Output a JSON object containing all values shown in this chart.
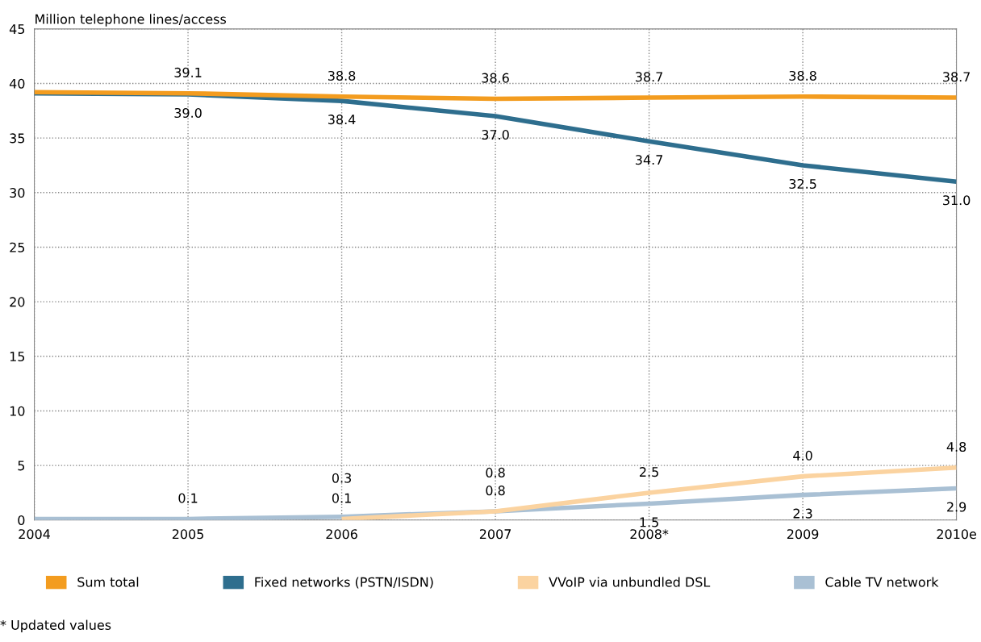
{
  "chart_data": {
    "type": "line",
    "ylabel": "Million telephone lines/access",
    "categories": [
      "2004",
      "2005",
      "2006",
      "2007",
      "2008*",
      "2009",
      "2010e"
    ],
    "series": [
      {
        "name": "Sum total",
        "color": "#f39c1f",
        "values": [
          39.2,
          39.1,
          38.8,
          38.6,
          38.7,
          38.8,
          38.7
        ],
        "value_labels": [
          null,
          "39.1",
          "38.8",
          "38.6",
          "38.7",
          "38.8",
          "38.7"
        ]
      },
      {
        "name": "Fixed networks (PSTN/ISDN)",
        "color": "#2e6e8e",
        "values": [
          39.1,
          39.0,
          38.4,
          37.0,
          34.7,
          32.5,
          31.0
        ],
        "value_labels": [
          null,
          "39.0",
          "38.4",
          "37.0",
          "34.7",
          "32.5",
          "31.0"
        ]
      },
      {
        "name": "VVoIP via unbundled DSL",
        "color": "#fbd3a0",
        "values": [
          null,
          null,
          0.1,
          0.8,
          2.5,
          4.0,
          4.8
        ],
        "value_labels": [
          null,
          null,
          "0.1",
          "0.8",
          "2.5",
          "4.0",
          "4.8"
        ]
      },
      {
        "name": "Cable TV network",
        "color": "#a9c0d4",
        "values": [
          0.1,
          0.1,
          0.3,
          0.8,
          1.5,
          2.3,
          2.9
        ],
        "value_labels": [
          null,
          "0.1",
          "0.3",
          "0.8",
          "1.5",
          "2.3",
          "2.9"
        ]
      }
    ],
    "ylim": [
      0,
      45
    ],
    "yticks": [
      0,
      5,
      10,
      15,
      20,
      25,
      30,
      35,
      40,
      45
    ],
    "grid": true,
    "legend": "bottom",
    "marker": "none",
    "line_style": "solid",
    "annotations": [
      "* Updated values"
    ]
  }
}
